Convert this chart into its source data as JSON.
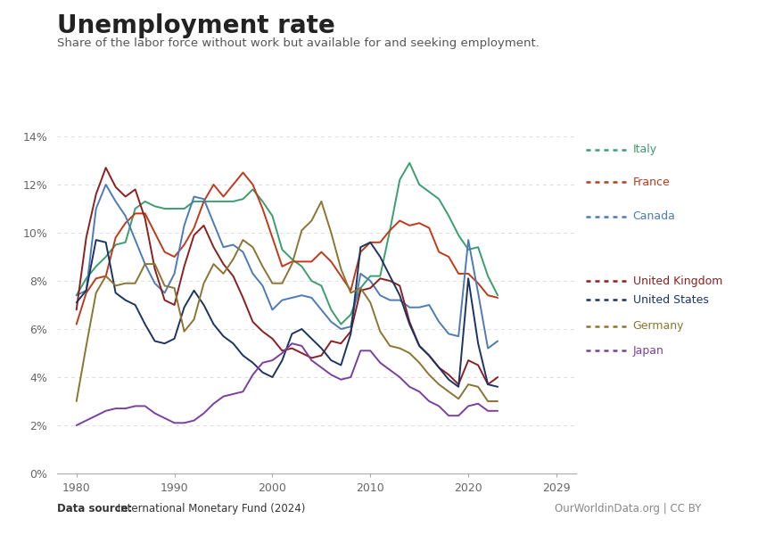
{
  "title": "Unemployment rate",
  "subtitle": "Share of the labor force without work but available for and seeking employment.",
  "ylim": [
    0,
    0.14
  ],
  "xlim": [
    1978,
    2031
  ],
  "yticks": [
    0.0,
    0.02,
    0.04,
    0.06,
    0.08,
    0.1,
    0.12,
    0.14
  ],
  "ytick_labels": [
    "0%",
    "2%",
    "4%",
    "6%",
    "8%",
    "10%",
    "12%",
    "14%"
  ],
  "xticks": [
    1980,
    1990,
    2000,
    2010,
    2020,
    2029
  ],
  "xtick_labels": [
    "1980",
    "1990",
    "2000",
    "2010",
    "2020",
    "2029"
  ],
  "background_color": "#ffffff",
  "grid_color": "#cccccc",
  "datasource_bold": "Data source:",
  "datasource_rest": " International Monetary Fund (2024)",
  "credit": "OurWorldinData.org | CC BY",
  "series": {
    "Italy": {
      "color": "#3a9e6e",
      "years": [
        1980,
        1981,
        1982,
        1983,
        1984,
        1985,
        1986,
        1987,
        1988,
        1989,
        1990,
        1991,
        1992,
        1993,
        1994,
        1995,
        1996,
        1997,
        1998,
        1999,
        2000,
        2001,
        2002,
        2003,
        2004,
        2005,
        2006,
        2007,
        2008,
        2009,
        2010,
        2011,
        2012,
        2013,
        2014,
        2015,
        2016,
        2017,
        2018,
        2019,
        2020,
        2021,
        2022,
        2023
      ],
      "values": [
        0.074,
        0.081,
        0.086,
        0.09,
        0.095,
        0.096,
        0.11,
        0.113,
        0.111,
        0.11,
        0.11,
        0.11,
        0.113,
        0.113,
        0.113,
        0.113,
        0.113,
        0.114,
        0.118,
        0.113,
        0.107,
        0.093,
        0.089,
        0.086,
        0.08,
        0.078,
        0.068,
        0.062,
        0.066,
        0.077,
        0.082,
        0.082,
        0.101,
        0.122,
        0.129,
        0.12,
        0.117,
        0.114,
        0.107,
        0.099,
        0.093,
        0.094,
        0.082,
        0.074
      ],
      "forecast_from": 2023
    },
    "France": {
      "color": "#c0391b",
      "years": [
        1980,
        1981,
        1982,
        1983,
        1984,
        1985,
        1986,
        1987,
        1988,
        1989,
        1990,
        1991,
        1992,
        1993,
        1994,
        1995,
        1996,
        1997,
        1998,
        1999,
        2000,
        2001,
        2002,
        2003,
        2004,
        2005,
        2006,
        2007,
        2008,
        2009,
        2010,
        2011,
        2012,
        2013,
        2014,
        2015,
        2016,
        2017,
        2018,
        2019,
        2020,
        2021,
        2022,
        2023
      ],
      "values": [
        0.062,
        0.075,
        0.081,
        0.082,
        0.098,
        0.104,
        0.108,
        0.108,
        0.1,
        0.092,
        0.09,
        0.095,
        0.102,
        0.113,
        0.12,
        0.115,
        0.12,
        0.125,
        0.12,
        0.11,
        0.098,
        0.086,
        0.088,
        0.088,
        0.088,
        0.092,
        0.088,
        0.082,
        0.076,
        0.092,
        0.096,
        0.096,
        0.101,
        0.105,
        0.103,
        0.104,
        0.102,
        0.092,
        0.09,
        0.083,
        0.083,
        0.079,
        0.074,
        0.073
      ],
      "forecast_from": 2023
    },
    "Canada": {
      "color": "#4c7bb5",
      "years": [
        1980,
        1981,
        1982,
        1983,
        1984,
        1985,
        1986,
        1987,
        1988,
        1989,
        1990,
        1991,
        1992,
        1993,
        1994,
        1995,
        1996,
        1997,
        1998,
        1999,
        2000,
        2001,
        2002,
        2003,
        2004,
        2005,
        2006,
        2007,
        2008,
        2009,
        2010,
        2011,
        2012,
        2013,
        2014,
        2015,
        2016,
        2017,
        2018,
        2019,
        2020,
        2021,
        2022,
        2023
      ],
      "values": [
        0.074,
        0.076,
        0.11,
        0.12,
        0.113,
        0.107,
        0.097,
        0.087,
        0.079,
        0.075,
        0.083,
        0.103,
        0.115,
        0.114,
        0.104,
        0.094,
        0.095,
        0.092,
        0.083,
        0.078,
        0.068,
        0.072,
        0.073,
        0.074,
        0.073,
        0.068,
        0.063,
        0.06,
        0.061,
        0.083,
        0.08,
        0.074,
        0.072,
        0.072,
        0.069,
        0.069,
        0.07,
        0.063,
        0.058,
        0.057,
        0.097,
        0.075,
        0.052,
        0.055
      ],
      "forecast_from": 2023
    },
    "United Kingdom": {
      "color": "#8b2020",
      "years": [
        1980,
        1981,
        1982,
        1983,
        1984,
        1985,
        1986,
        1987,
        1988,
        1989,
        1990,
        1991,
        1992,
        1993,
        1994,
        1995,
        1996,
        1997,
        1998,
        1999,
        2000,
        2001,
        2002,
        2003,
        2004,
        2005,
        2006,
        2007,
        2008,
        2009,
        2010,
        2011,
        2012,
        2013,
        2014,
        2015,
        2016,
        2017,
        2018,
        2019,
        2020,
        2021,
        2022,
        2023
      ],
      "values": [
        0.068,
        0.098,
        0.116,
        0.127,
        0.119,
        0.115,
        0.118,
        0.106,
        0.085,
        0.072,
        0.07,
        0.086,
        0.099,
        0.103,
        0.094,
        0.087,
        0.082,
        0.073,
        0.063,
        0.059,
        0.056,
        0.051,
        0.052,
        0.05,
        0.048,
        0.049,
        0.055,
        0.054,
        0.059,
        0.076,
        0.077,
        0.081,
        0.08,
        0.078,
        0.063,
        0.053,
        0.049,
        0.044,
        0.041,
        0.037,
        0.047,
        0.045,
        0.037,
        0.04
      ],
      "forecast_from": 2023
    },
    "United States": {
      "color": "#1c3461",
      "years": [
        1980,
        1981,
        1982,
        1983,
        1984,
        1985,
        1986,
        1987,
        1988,
        1989,
        1990,
        1991,
        1992,
        1993,
        1994,
        1995,
        1996,
        1997,
        1998,
        1999,
        2000,
        2001,
        2002,
        2003,
        2004,
        2005,
        2006,
        2007,
        2008,
        2009,
        2010,
        2011,
        2012,
        2013,
        2014,
        2015,
        2016,
        2017,
        2018,
        2019,
        2020,
        2021,
        2022,
        2023
      ],
      "values": [
        0.071,
        0.076,
        0.097,
        0.096,
        0.075,
        0.072,
        0.07,
        0.062,
        0.055,
        0.054,
        0.056,
        0.069,
        0.076,
        0.07,
        0.062,
        0.057,
        0.054,
        0.049,
        0.046,
        0.042,
        0.04,
        0.047,
        0.058,
        0.06,
        0.056,
        0.052,
        0.047,
        0.045,
        0.058,
        0.094,
        0.096,
        0.09,
        0.082,
        0.074,
        0.062,
        0.053,
        0.049,
        0.044,
        0.039,
        0.036,
        0.081,
        0.054,
        0.037,
        0.036
      ],
      "forecast_from": 2023
    },
    "Germany": {
      "color": "#8b7532",
      "years": [
        1980,
        1981,
        1982,
        1983,
        1984,
        1985,
        1986,
        1987,
        1988,
        1989,
        1990,
        1991,
        1992,
        1993,
        1994,
        1995,
        1996,
        1997,
        1998,
        1999,
        2000,
        2001,
        2002,
        2003,
        2004,
        2005,
        2006,
        2007,
        2008,
        2009,
        2010,
        2011,
        2012,
        2013,
        2014,
        2015,
        2016,
        2017,
        2018,
        2019,
        2020,
        2021,
        2022,
        2023
      ],
      "values": [
        0.03,
        0.053,
        0.075,
        0.082,
        0.078,
        0.079,
        0.079,
        0.087,
        0.087,
        0.078,
        0.077,
        0.059,
        0.064,
        0.079,
        0.087,
        0.083,
        0.089,
        0.097,
        0.094,
        0.086,
        0.079,
        0.079,
        0.087,
        0.101,
        0.105,
        0.113,
        0.1,
        0.085,
        0.075,
        0.077,
        0.071,
        0.059,
        0.053,
        0.052,
        0.05,
        0.046,
        0.041,
        0.037,
        0.034,
        0.031,
        0.037,
        0.036,
        0.03,
        0.03
      ],
      "forecast_from": 2023
    },
    "Japan": {
      "color": "#7b3fa0",
      "years": [
        1980,
        1981,
        1982,
        1983,
        1984,
        1985,
        1986,
        1987,
        1988,
        1989,
        1990,
        1991,
        1992,
        1993,
        1994,
        1995,
        1996,
        1997,
        1998,
        1999,
        2000,
        2001,
        2002,
        2003,
        2004,
        2005,
        2006,
        2007,
        2008,
        2009,
        2010,
        2011,
        2012,
        2013,
        2014,
        2015,
        2016,
        2017,
        2018,
        2019,
        2020,
        2021,
        2022,
        2023
      ],
      "values": [
        0.02,
        0.022,
        0.024,
        0.026,
        0.027,
        0.027,
        0.028,
        0.028,
        0.025,
        0.023,
        0.021,
        0.021,
        0.022,
        0.025,
        0.029,
        0.032,
        0.033,
        0.034,
        0.041,
        0.046,
        0.047,
        0.05,
        0.054,
        0.053,
        0.047,
        0.044,
        0.041,
        0.039,
        0.04,
        0.051,
        0.051,
        0.046,
        0.043,
        0.04,
        0.036,
        0.034,
        0.03,
        0.028,
        0.024,
        0.024,
        0.028,
        0.029,
        0.026,
        0.026
      ],
      "forecast_from": 2023
    }
  },
  "legend_order": [
    "Italy",
    "France",
    "Canada",
    "United Kingdom",
    "United States",
    "Germany",
    "Japan"
  ]
}
